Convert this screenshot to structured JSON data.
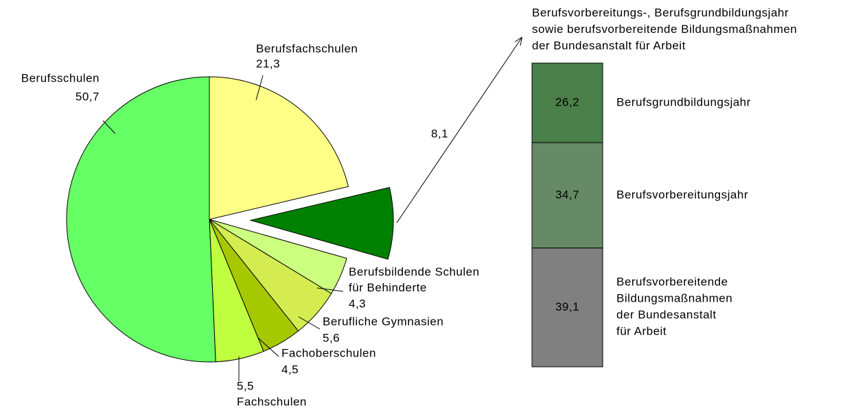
{
  "chart_data": [
    {
      "type": "pie",
      "categories": [
        "Berufsfachschulen",
        null,
        "Berufsbildende Schulen\nfür Behinderte",
        "Berufliche Gymnasien",
        "Fachoberschulen",
        "Fachschulen",
        "Berufsschulen"
      ],
      "values": [
        21.3,
        8.1,
        4.3,
        5.6,
        4.5,
        5.5,
        50.7
      ],
      "value_labels": [
        "21,3",
        "8,1",
        "4,3",
        "5,6",
        "4,5",
        "5,5",
        "50,7"
      ],
      "colors": [
        "#ffff88",
        "#008000",
        "#ccff80",
        "#d4ec50",
        "#a6c800",
        "#c0ff40",
        "#66ff66"
      ],
      "explode": [
        false,
        true,
        false,
        false,
        false,
        false,
        false
      ]
    },
    {
      "type": "stacked_bar",
      "title": "Berufsvorbereitungs-, Berufsgrundbildungsjahr\nsowie berufsvorbereitende Bildungsmaßnahmen\nder Bundesanstalt für Arbeit",
      "series": [
        {
          "name": "Berufsgrundbildungsjahr",
          "color": "#4a7f4a",
          "values": [
            26.2
          ],
          "value_labels": [
            "26,2"
          ]
        },
        {
          "name": "Berufsvorbereitungsjahr",
          "color": "#668a66",
          "values": [
            34.7
          ],
          "value_labels": [
            "34,7"
          ]
        },
        {
          "name": "Berufsvorbereitende\nBildungsmaßnahmen\nder Bundesanstalt\nfür Arbeit",
          "color": "#808080",
          "values": [
            39.1
          ],
          "value_labels": [
            "39,1"
          ]
        }
      ]
    }
  ]
}
